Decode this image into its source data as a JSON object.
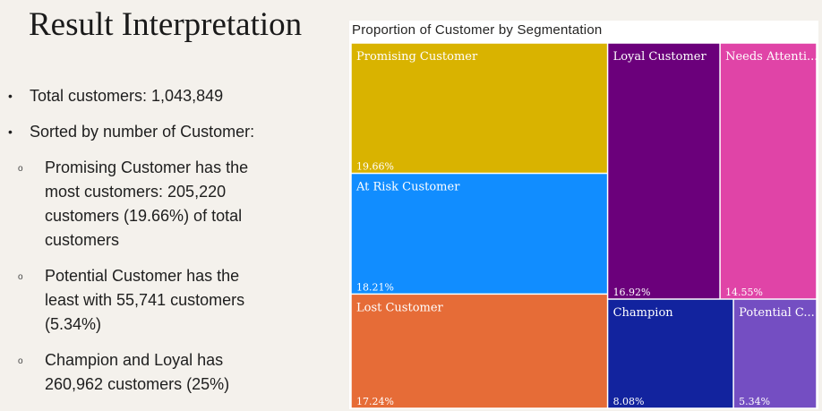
{
  "slide": {
    "title": "Result Interpretation",
    "bullets": [
      "Total customers: 1,043,849",
      "Sorted by number of Customer:"
    ],
    "sub_bullets": [
      "Promising Customer has the most customers: 205,220 customers (19.66%) of total customers",
      "Potential Customer has the least with 55,741 customers (5.34%)",
      "Champion and Loyal has 260,962 customers (25%)"
    ],
    "bullet_glyph": "•",
    "sub_bullet_glyph": "o"
  },
  "chart_data": {
    "type": "treemap",
    "title": "Proportion of Customer by Segmentation",
    "categories": [
      "Promising Customer",
      "At Risk Customer",
      "Lost Customer",
      "Loyal Customer",
      "Needs Attention",
      "Champion",
      "Potential Customer"
    ],
    "display_names": [
      "Promising Customer",
      "At Risk Customer",
      "Lost Customer",
      "Loyal Customer",
      "Needs Attenti...",
      "Champion",
      "Potential C..."
    ],
    "values": [
      19.66,
      18.21,
      17.24,
      16.92,
      14.55,
      8.08,
      5.34
    ],
    "value_labels": [
      "19.66%",
      "18.21%",
      "17.24%",
      "16.92%",
      "14.55%",
      "8.08%",
      "5.34%"
    ],
    "colors": [
      "#d9b300",
      "#118dff",
      "#e66c37",
      "#6b007b",
      "#e044a7",
      "#12239e",
      "#744ec2"
    ]
  }
}
